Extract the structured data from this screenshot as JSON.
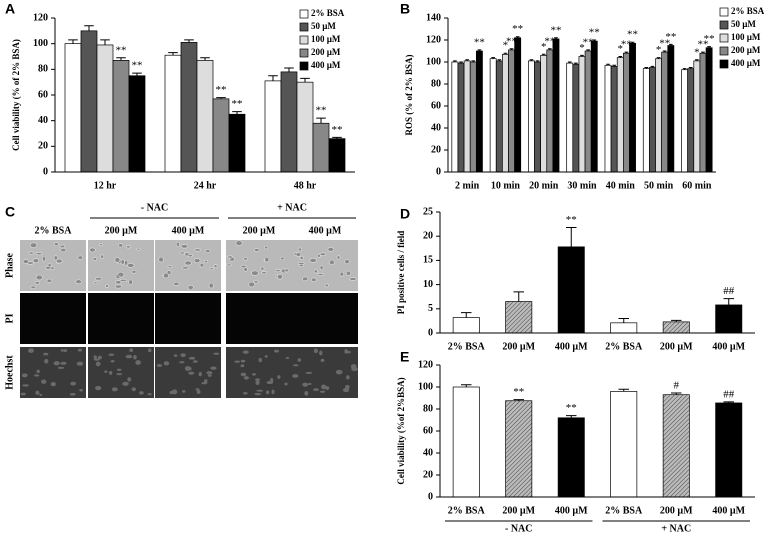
{
  "chart_data": [
    {
      "type": "bar",
      "panel": "A",
      "ylabel": "Cell viability (% of 2% BSA)",
      "categories": [
        "12 hr",
        "24 hr",
        "48 hr"
      ],
      "series": [
        {
          "name": "2% BSA",
          "color": "#ffffff",
          "values": [
            100,
            91,
            71
          ],
          "errors": [
            3,
            2,
            4
          ],
          "significance": [
            null,
            null,
            null
          ]
        },
        {
          "name": "50 µM",
          "color": "#555555",
          "values": [
            110,
            101,
            78
          ],
          "errors": [
            4,
            2,
            3
          ],
          "significance": [
            null,
            null,
            null
          ]
        },
        {
          "name": "100 µM",
          "color": "#dddddd",
          "values": [
            99,
            87,
            70
          ],
          "errors": [
            4,
            2,
            3
          ],
          "significance": [
            null,
            null,
            null
          ]
        },
        {
          "name": "200 µM",
          "color": "#888888",
          "values": [
            87,
            57,
            38
          ],
          "errors": [
            2,
            1,
            4
          ],
          "significance": [
            "**",
            "**",
            "**"
          ]
        },
        {
          "name": "400 µM",
          "color": "#000000",
          "values": [
            75,
            45,
            26
          ],
          "errors": [
            2,
            2,
            1
          ],
          "significance": [
            "**",
            "**",
            "**"
          ]
        }
      ],
      "ylim": [
        0,
        120
      ],
      "yticks": [
        0,
        20,
        40,
        60,
        80,
        100,
        120
      ],
      "legend": "upper right"
    },
    {
      "type": "bar",
      "panel": "B",
      "ylabel": "ROS (% of 2% BSA)",
      "categories": [
        "2 min",
        "10 min",
        "20 min",
        "30 min",
        "40 min",
        "50 min",
        "60 min"
      ],
      "series": [
        {
          "name": "2% BSA",
          "color": "#ffffff",
          "values": [
            100,
            103,
            101,
            99,
            97,
            94,
            93
          ],
          "errors": [
            1,
            1,
            1,
            1,
            1,
            1,
            1
          ],
          "significance": [
            null,
            null,
            null,
            null,
            null,
            null,
            null
          ]
        },
        {
          "name": "50 µM",
          "color": "#555555",
          "values": [
            99,
            101,
            100,
            98,
            96,
            95,
            94
          ],
          "errors": [
            1,
            1,
            1,
            1,
            1,
            1,
            1
          ],
          "significance": [
            null,
            null,
            null,
            null,
            null,
            null,
            null
          ]
        },
        {
          "name": "100 µM",
          "color": "#dddddd",
          "values": [
            101,
            107,
            106,
            105,
            104,
            103,
            101
          ],
          "errors": [
            1,
            1,
            1,
            1,
            1,
            1,
            1
          ],
          "significance": [
            null,
            "*",
            "*",
            "*",
            "*",
            "*",
            "*"
          ]
        },
        {
          "name": "200 µM",
          "color": "#888888",
          "values": [
            100,
            111,
            111,
            110,
            108,
            109,
            108
          ],
          "errors": [
            1,
            1,
            1,
            1,
            1,
            1,
            1
          ],
          "significance": [
            null,
            "**",
            "**",
            "**",
            "**",
            "**",
            "**"
          ]
        },
        {
          "name": "400 µM",
          "color": "#000000",
          "values": [
            110,
            122,
            121,
            119,
            117,
            115,
            113
          ],
          "errors": [
            1,
            1,
            1,
            1,
            1,
            1,
            1
          ],
          "significance": [
            "**",
            "**",
            "**",
            "**",
            "**",
            "**",
            "**"
          ]
        }
      ],
      "ylim": [
        0,
        140
      ],
      "yticks": [
        0,
        20,
        40,
        60,
        80,
        100,
        120,
        140
      ],
      "legend": "upper right"
    },
    {
      "type": "bar",
      "panel": "D",
      "ylabel": "PI positive cells / field",
      "categories": [
        "2% BSA",
        "200 µM",
        "400 µM",
        "2% BSA",
        "200 µM",
        "400 µM"
      ],
      "values": [
        3.2,
        6.5,
        17.8,
        2.1,
        2.3,
        5.8
      ],
      "errors": [
        1.0,
        2.0,
        4.0,
        0.9,
        0.3,
        1.3
      ],
      "significance": [
        null,
        null,
        "**",
        null,
        null,
        "##"
      ],
      "colors": [
        "#ffffff",
        "#a0a0a0",
        "#000000",
        "#ffffff",
        "#a0a0a0",
        "#000000"
      ],
      "hatched": [
        false,
        true,
        false,
        false,
        true,
        false
      ],
      "ylim": [
        0,
        25
      ],
      "yticks": [
        0,
        5,
        10,
        15,
        20,
        25
      ]
    },
    {
      "type": "bar",
      "panel": "E",
      "ylabel": "Cell viability (%of 2%BSA)",
      "categories": [
        "2% BSA",
        "200 µM",
        "400 µM",
        "2% BSA",
        "200 µM",
        "400 µM"
      ],
      "values": [
        100,
        87.5,
        72,
        96,
        93,
        85.5
      ],
      "errors": [
        2,
        1,
        2,
        2,
        1.5,
        1
      ],
      "significance": [
        null,
        "**",
        "**",
        null,
        "#",
        "##"
      ],
      "colors": [
        "#ffffff",
        "#a0a0a0",
        "#000000",
        "#ffffff",
        "#a0a0a0",
        "#000000"
      ],
      "hatched": [
        false,
        true,
        false,
        false,
        true,
        false
      ],
      "groups": [
        "- NAC",
        "+ NAC"
      ],
      "ylim": [
        0,
        120
      ],
      "yticks": [
        0,
        20,
        40,
        60,
        80,
        100,
        120
      ]
    }
  ],
  "panel_c": {
    "panel": "C",
    "groups": [
      "- NAC",
      "+ NAC"
    ],
    "columns": [
      "2% BSA",
      "200 µM",
      "400 µM",
      "200 µM",
      "400 µM"
    ],
    "rows": [
      "Phase",
      "PI",
      "Hoechst"
    ]
  }
}
